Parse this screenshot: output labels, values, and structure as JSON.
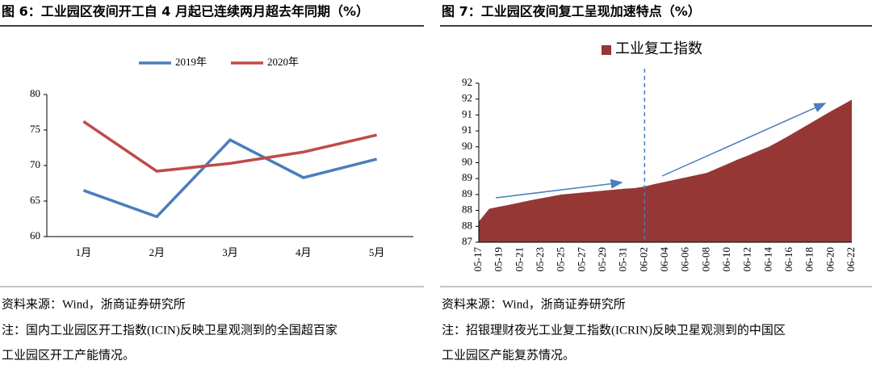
{
  "chart_data": [
    {
      "type": "line",
      "title": "图 6：工业园区夜间开工自 4 月起已连续两月超去年同期（%）",
      "categories": [
        "1月",
        "2月",
        "3月",
        "4月",
        "5月"
      ],
      "series": [
        {
          "name": "2019年",
          "color": "#4a7ebb",
          "values": [
            66.5,
            62.8,
            73.6,
            68.3,
            70.9
          ]
        },
        {
          "name": "2020年",
          "color": "#be4b48",
          "values": [
            76.2,
            69.2,
            70.3,
            71.9,
            74.3
          ]
        }
      ],
      "ylim": [
        60,
        80
      ],
      "yticks": [
        60,
        65,
        70,
        75,
        80
      ],
      "legend": "top",
      "source": "资料来源：Wind，浙商证券研究所",
      "note": [
        "注：国内工业园区开工指数(ICIN)反映卫星观测到的全国超百家",
        "工业园区开工产能情况。"
      ]
    },
    {
      "type": "area",
      "title": "图 7：工业园区夜间复工呈现加速特点（%）",
      "categories": [
        "05-17",
        null,
        "05-19",
        null,
        "05-21",
        null,
        "05-23",
        null,
        "05-25",
        null,
        "05-27",
        null,
        "05-29",
        null,
        "05-31",
        null,
        "06-02",
        null,
        "06-04",
        null,
        "06-06",
        null,
        "06-08",
        null,
        "06-10",
        null,
        "06-12",
        null,
        "06-14",
        null,
        "06-16",
        null,
        "06-18",
        null,
        "06-20",
        null,
        "06-22"
      ],
      "series": [
        {
          "name": "工业复工指数",
          "color": "#953735",
          "values": [
            87.65,
            88.05,
            88.12,
            88.18,
            88.25,
            88.32,
            88.38,
            88.44,
            88.5,
            88.53,
            88.56,
            88.59,
            88.62,
            88.65,
            88.68,
            88.7,
            88.75,
            88.83,
            88.9,
            88.97,
            89.04,
            89.11,
            89.18,
            89.32,
            89.46,
            89.6,
            89.73,
            89.87,
            90.0,
            90.18,
            90.36,
            90.55,
            90.74,
            90.93,
            91.12,
            91.3,
            91.48
          ]
        }
      ],
      "ylim": [
        87,
        92
      ],
      "yticks": [
        87,
        {
          "value": 87.5,
          "label": "88"
        },
        88,
        {
          "value": 88.5,
          "label": "89"
        },
        89,
        {
          "value": 89.5,
          "label": "90"
        },
        90,
        {
          "value": 90.5,
          "label": "91"
        },
        91,
        {
          "value": 91.5,
          "label": "92"
        },
        92
      ],
      "reference_line": "06-02",
      "legend": "top",
      "source": "资料来源：Wind，浙商证券研究所",
      "note": [
        "注：招银理财夜光工业复工指数(ICRIN)反映卫星观测到的中国区",
        "工业园区产能复苏情况。"
      ]
    }
  ]
}
